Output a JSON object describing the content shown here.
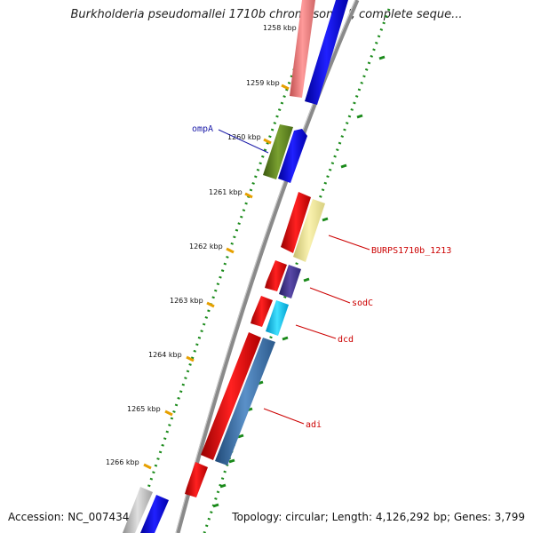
{
  "title": "Burkholderia pseudomallei 1710b chromosome I, complete seque...",
  "footer": {
    "accession_label": "Accession:",
    "accession": "NC_007434",
    "topology_label": "Topology:",
    "topology": "circular",
    "length_label": "Length:",
    "length": "4,126,292 bp",
    "genes_label": "Genes:",
    "genes": "3,799"
  },
  "colors": {
    "backbone": "#8a8a8a",
    "tick": "#e6a000",
    "gc_dots": "#1a8a1a",
    "label_red": "#cc0000",
    "label_blue": "#1a1aa8"
  },
  "ticks": [
    {
      "label": "1258 kbp"
    },
    {
      "label": "1259 kbp"
    },
    {
      "label": "1260 kbp"
    },
    {
      "label": "1261 kbp"
    },
    {
      "label": "1262 kbp"
    },
    {
      "label": "1263 kbp"
    },
    {
      "label": "1264 kbp"
    },
    {
      "label": "1265 kbp"
    },
    {
      "label": "1266 kbp"
    }
  ],
  "gene_labels": [
    {
      "text": "ompA",
      "color": "#1a1aa8"
    },
    {
      "text": "BURPS1710b_1213",
      "color": "#cc0000"
    },
    {
      "text": "sodC",
      "color": "#cc0000"
    },
    {
      "text": "dcd",
      "color": "#cc0000"
    },
    {
      "text": "adi",
      "color": "#cc0000"
    }
  ]
}
